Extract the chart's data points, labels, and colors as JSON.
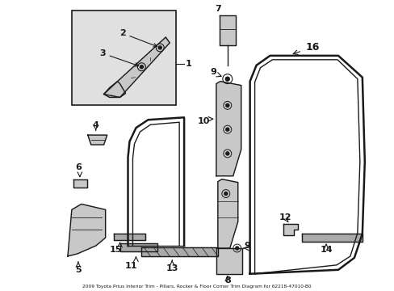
{
  "title": "2009 Toyota Prius Interior Trim - Pillars, Rocker & Floor Corner Trim Diagram for 62218-47010-B0",
  "bg_color": "#ffffff",
  "line_color": "#1a1a1a",
  "gray_light": "#c8c8c8",
  "gray_mid": "#aaaaaa",
  "inset_bg": "#e0e0e0"
}
